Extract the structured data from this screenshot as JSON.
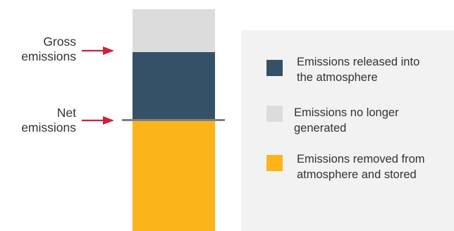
{
  "labels": {
    "gross": [
      "Gross",
      "emissions"
    ],
    "net": [
      "Net",
      "emissions"
    ]
  },
  "legend": {
    "items": [
      {
        "lines": [
          "Emissions released into",
          "the atmosphere"
        ],
        "color": "#345168"
      },
      {
        "lines": [
          "Emissions no longer",
          "generated"
        ],
        "color": "#dcdcdc"
      },
      {
        "lines": [
          "Emissions removed from",
          "atmosphere and stored"
        ],
        "color": "#fbb51b"
      }
    ]
  },
  "colors": {
    "arrow": "#d21f3c",
    "net_line": "#7f7f7f",
    "legend_background": "#f2f2f2"
  }
}
